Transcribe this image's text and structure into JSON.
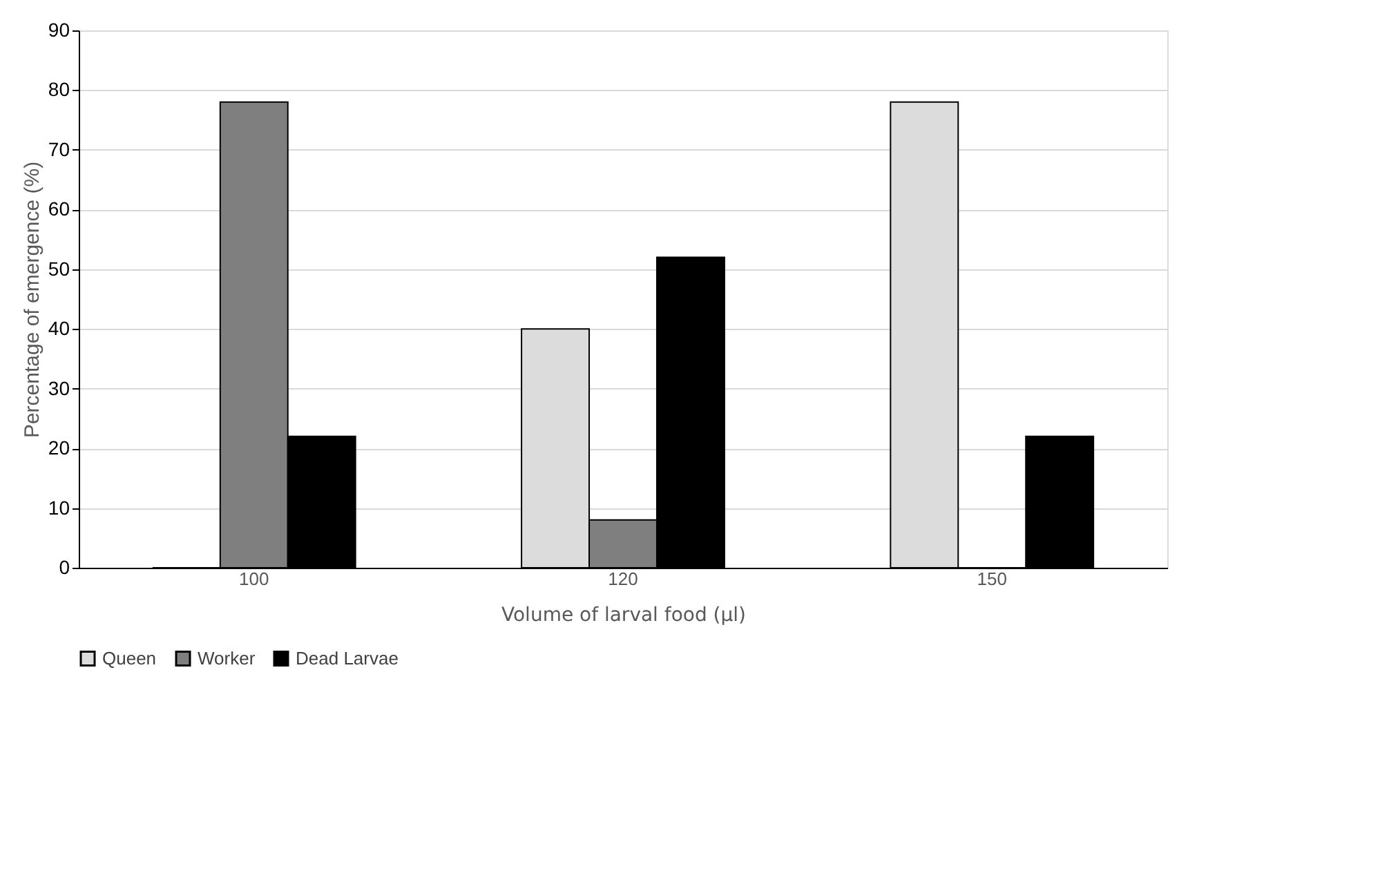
{
  "chart_data": {
    "type": "bar",
    "xlabel": "Volume of larval food (μl)",
    "ylabel": "Percentage of emergence (%)",
    "categories": [
      "100",
      "120",
      "150"
    ],
    "series": [
      {
        "name": "Queen",
        "color": "#dcdcdc",
        "values": [
          0,
          40,
          78
        ]
      },
      {
        "name": "Worker",
        "color": "#7f7f7f",
        "values": [
          78,
          8,
          0
        ]
      },
      {
        "name": "Dead Larvae",
        "color": "#000000",
        "values": [
          22,
          52,
          22
        ]
      }
    ],
    "ylim": [
      0,
      90
    ],
    "yticks": [
      0,
      10,
      20,
      30,
      40,
      50,
      60,
      70,
      80,
      90
    ],
    "grid": "y",
    "legend": "bottom"
  }
}
